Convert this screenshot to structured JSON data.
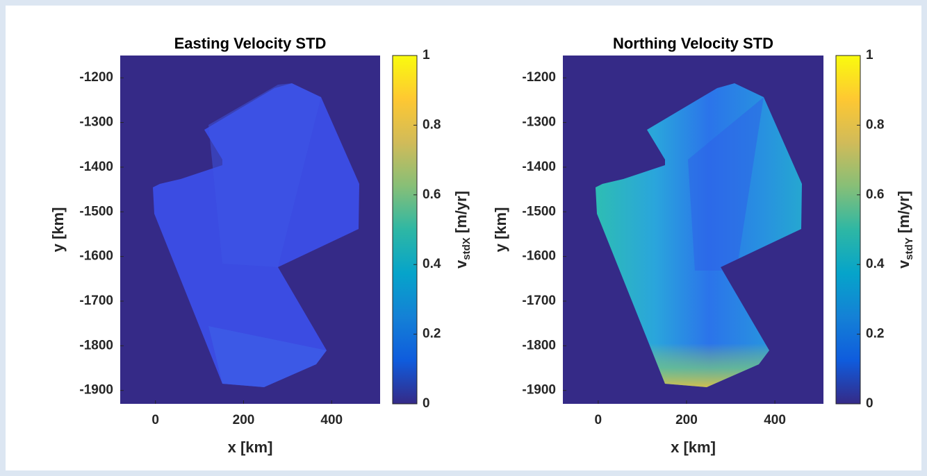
{
  "chart_data": [
    {
      "type": "heatmap",
      "title": "Easting Velocity STD",
      "xlabel": "x [km]",
      "ylabel": "y [km]",
      "xlim": [
        -80,
        510
      ],
      "ylim": [
        -1930,
        -1150
      ],
      "xticks": [
        0,
        200,
        400
      ],
      "yticks": [
        -1900,
        -1800,
        -1700,
        -1600,
        -1500,
        -1400,
        -1300,
        -1200
      ],
      "colorbar": {
        "label": "v",
        "label_sub": "stdX",
        "label_unit": "[m/yr]",
        "lim": [
          0,
          1
        ],
        "ticks": [
          0,
          0.2,
          0.4,
          0.6,
          0.8,
          1
        ],
        "colormap": [
          "#352a87",
          "#0f5cdd",
          "#1481d6",
          "#06a4ca",
          "#2eb7a4",
          "#87bf77",
          "#d1bb59",
          "#fec832",
          "#f9fb0e"
        ]
      }
    },
    {
      "type": "heatmap",
      "title": "Northing Velocity STD",
      "xlabel": "x [km]",
      "ylabel": "y [km]",
      "xlim": [
        -80,
        510
      ],
      "ylim": [
        -1930,
        -1150
      ],
      "xticks": [
        0,
        200,
        400
      ],
      "yticks": [
        -1900,
        -1800,
        -1700,
        -1600,
        -1500,
        -1400,
        -1300,
        -1200
      ],
      "colorbar": {
        "label": "v",
        "label_sub": "stdY",
        "label_unit": "[m/yr]",
        "lim": [
          0,
          1
        ],
        "ticks": [
          0,
          0.2,
          0.4,
          0.6,
          0.8,
          1
        ],
        "colormap": [
          "#352a87",
          "#0f5cdd",
          "#1481d6",
          "#06a4ca",
          "#2eb7a4",
          "#87bf77",
          "#d1bb59",
          "#fec832",
          "#f9fb0e"
        ]
      }
    }
  ]
}
